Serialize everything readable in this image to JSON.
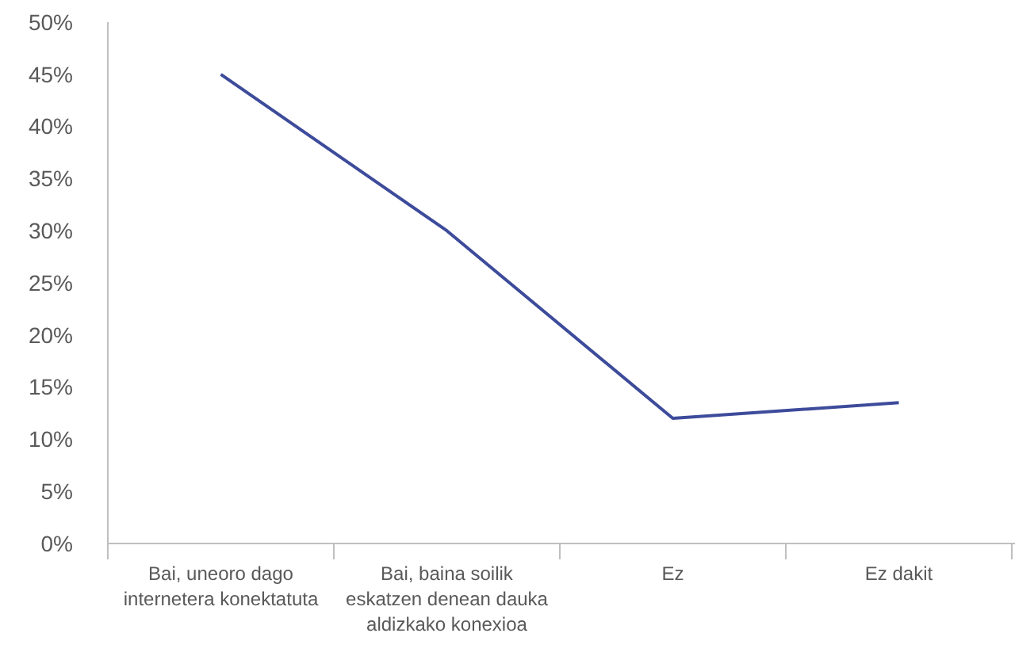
{
  "chart_data": {
    "type": "line",
    "categories": [
      "Bai, uneoro dago internetera konektatuta",
      "Bai, baina soilik eskatzen denean dauka aldizkako konexioa",
      "Ez",
      "Ez dakit"
    ],
    "series": [
      {
        "color": "#3d4b9b",
        "values": [
          45,
          30,
          12,
          13.5
        ]
      }
    ],
    "ylim": [
      0,
      50
    ],
    "yticks": [
      {
        "value": 0,
        "label": "0%"
      },
      {
        "value": 5,
        "label": "5%"
      },
      {
        "value": 10,
        "label": "10%"
      },
      {
        "value": 15,
        "label": "15%"
      },
      {
        "value": 20,
        "label": "20%"
      },
      {
        "value": 25,
        "label": "25%"
      },
      {
        "value": 30,
        "label": "30%"
      },
      {
        "value": 35,
        "label": "35%"
      },
      {
        "value": 40,
        "label": "40%"
      },
      {
        "value": 45,
        "label": "45%"
      },
      {
        "value": 50,
        "label": "50%"
      }
    ],
    "grid": false,
    "marker": "none",
    "line_style": "solid"
  }
}
